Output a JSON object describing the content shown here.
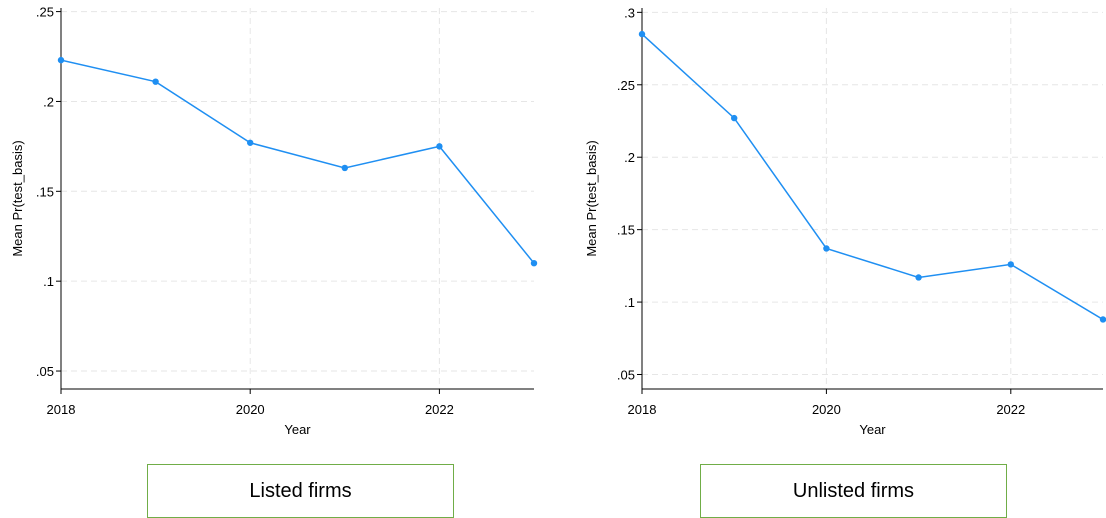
{
  "chart_data": [
    {
      "type": "line",
      "panel_label": "Listed firms",
      "xlabel": "Year",
      "ylabel": "Mean Pr(test_basis)",
      "x": [
        2018,
        2019,
        2020,
        2021,
        2022,
        2023
      ],
      "y": [
        0.223,
        0.211,
        0.177,
        0.163,
        0.175,
        0.11
      ],
      "xlim": [
        2018,
        2023
      ],
      "ylim": [
        0.04,
        0.252
      ],
      "xticks": [
        2018,
        2020,
        2022
      ],
      "xtick_labels": [
        "2018",
        "2020",
        "2022"
      ],
      "yticks": [
        0.05,
        0.1,
        0.15,
        0.2,
        0.25
      ],
      "ytick_labels": [
        ".05",
        ".1",
        ".15",
        ".2",
        ".25"
      ],
      "grid": true,
      "line_color": "#1f8ff2"
    },
    {
      "type": "line",
      "panel_label": "Unlisted firms",
      "xlabel": "Year",
      "ylabel": "Mean Pr(test_basis)",
      "x": [
        2018,
        2019,
        2020,
        2021,
        2022,
        2023
      ],
      "y": [
        0.285,
        0.227,
        0.137,
        0.117,
        0.126,
        0.088
      ],
      "xlim": [
        2018,
        2023
      ],
      "ylim": [
        0.04,
        0.303
      ],
      "xticks": [
        2018,
        2020,
        2022
      ],
      "xtick_labels": [
        "2018",
        "2020",
        "2022"
      ],
      "yticks": [
        0.05,
        0.1,
        0.15,
        0.2,
        0.25,
        0.3
      ],
      "ytick_labels": [
        ".05",
        ".1",
        ".15",
        ".2",
        ".25",
        ".3"
      ],
      "grid": true,
      "line_color": "#1f8ff2"
    }
  ],
  "labels": {
    "left": "Listed firms",
    "right": "Unlisted firms"
  }
}
